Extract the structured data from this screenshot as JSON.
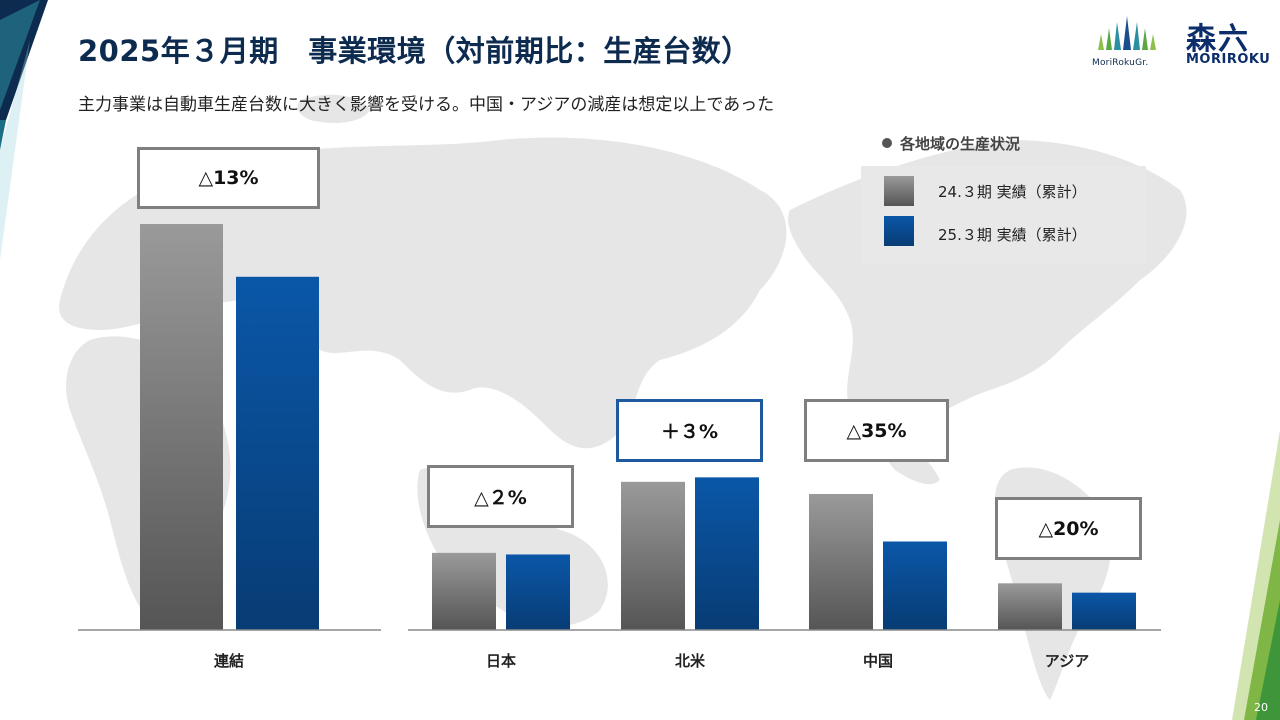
{
  "header": {
    "title": "2025年３月期　事業環境（対前期比：生産台数）",
    "subtitle": "主力事業は自動車生産台数に大きく影響を受ける。中国・アジアの減産は想定以上であった",
    "logo_sub_text": "MoriRokuGr.",
    "brand_kanji": "森六",
    "brand_en": "MORIROKU",
    "page_number": "20"
  },
  "legend": {
    "heading": "各地域の生産状況",
    "items": [
      {
        "label": "24.３期 実績（累計）",
        "color": "#808080"
      },
      {
        "label": "25.３期 実績（累計）",
        "color": "#0b4c95"
      }
    ]
  },
  "colors": {
    "prior_top": "#9a9a9a",
    "prior_bottom": "#555555",
    "current_top": "#0a57a8",
    "current_bottom": "#083c74",
    "title": "#0d2a4f",
    "box_border": "#7f7f7f",
    "box_border_up": "#1f5aa0"
  },
  "chart_data": {
    "type": "bar",
    "categories": [
      "連結",
      "日本",
      "北米",
      "中国",
      "アジア"
    ],
    "series": [
      {
        "name": "24.３期 実績（累計）",
        "values": [
          100,
          19.0,
          36.5,
          33.5,
          11.5
        ]
      },
      {
        "name": "25.３期 実績（累計）",
        "values": [
          87,
          18.6,
          37.6,
          21.8,
          9.2
        ]
      }
    ],
    "changes": [
      "△13%",
      "△２%",
      "＋３%",
      "△35%",
      "△20%"
    ],
    "change_direction": [
      "down",
      "down",
      "up",
      "down",
      "down"
    ],
    "ylim": [
      0,
      100
    ],
    "grid": false,
    "legend_position": "top-right"
  }
}
